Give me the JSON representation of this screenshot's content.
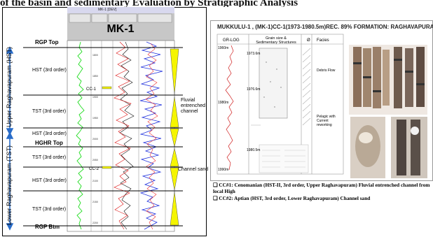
{
  "top_text": "of the basin and sedimentary Evaluation by Stratigraphic Analysis",
  "left_panel": {
    "header_small": "MK-1 [DEV]",
    "well_title": "MK-1",
    "vertical_labels": {
      "upper": "Upper Raghavapuram (HST)",
      "lower": "Lower Raghavapuram (TST)"
    },
    "tops": {
      "rgp_top": "RGP Top",
      "hghr_top": "HGHR Top",
      "rgp_btm": "RGP Btm"
    },
    "cycles": [
      "HST (3rd order)",
      "TST (3rd order)",
      "HST (3rd order)",
      "TST (3rd order)",
      "HST (3rd order)",
      "TST (3rd order)"
    ],
    "cores": [
      "CC-1",
      "CC-2"
    ],
    "right_notes": {
      "fluvial": "Fluvial entrenched channel",
      "channel": "Channel sand"
    }
  },
  "right_panel": {
    "title": "MUKKULU-1 , (MK-1)CC-1(1973-1980.5m)REC. 89%  FORMATION: RAGHAVAPURAM",
    "col_headers": [
      "GR-LOG",
      "Grain size & Sedimentary Structures",
      "Ø",
      "Facies"
    ],
    "depths": [
      "1960m",
      "1973.6m",
      "1976.6m",
      "1980m",
      "1980.5m",
      "1990m"
    ],
    "facies": [
      "Debris Flow",
      "Pelagic with Current reworking"
    ]
  },
  "captions": [
    "❑ CC#1: Cenomanian (HST-II, 3rd order, Upper Raghavapuram) Fluvial entrenched channel from local High",
    "❑ CC#2: Aptian (HST, 3rd order, Lower Raghavapuram) Channel sand"
  ]
}
